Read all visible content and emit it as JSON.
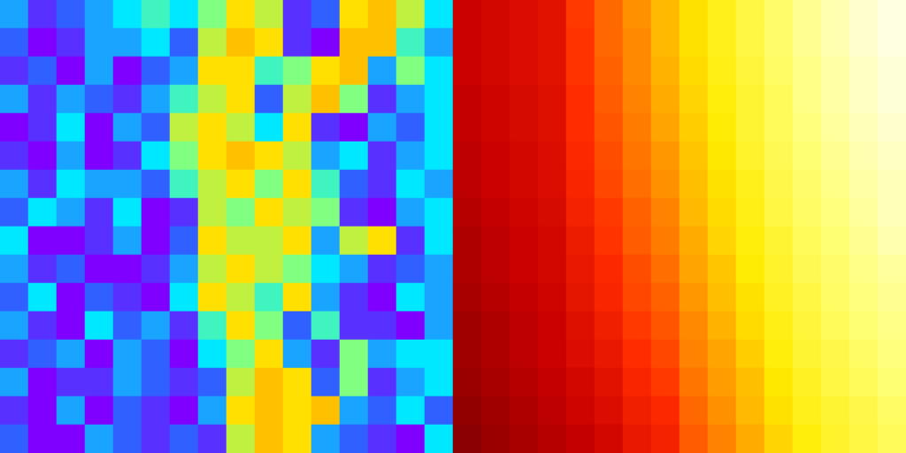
{
  "chart_data": [
    {
      "type": "heatmap",
      "tick_labels": false,
      "color_range": [
        0,
        1
      ],
      "cells": [
        [
          0.3,
          0.1,
          0.2,
          0.3,
          0.4,
          0.5,
          0.4,
          0.6,
          0.8,
          0.7,
          0.1,
          0.2,
          0.8,
          0.9,
          0.7,
          0.4
        ],
        [
          0.2,
          0.0,
          0.1,
          0.3,
          0.3,
          0.4,
          0.2,
          0.7,
          0.9,
          0.8,
          0.1,
          0.0,
          0.9,
          0.9,
          0.5,
          0.3
        ],
        [
          0.1,
          0.2,
          0.0,
          0.3,
          0.0,
          0.2,
          0.3,
          0.8,
          0.8,
          0.5,
          0.6,
          0.8,
          0.9,
          0.3,
          0.6,
          0.4
        ],
        [
          0.3,
          0.1,
          0.3,
          0.2,
          0.1,
          0.3,
          0.5,
          0.7,
          0.8,
          0.2,
          0.7,
          0.9,
          0.6,
          0.1,
          0.3,
          0.4
        ],
        [
          0.0,
          0.1,
          0.4,
          0.0,
          0.3,
          0.2,
          0.7,
          0.8,
          0.7,
          0.4,
          0.8,
          0.1,
          0.0,
          0.3,
          0.2,
          0.4
        ],
        [
          0.1,
          0.0,
          0.3,
          0.0,
          0.1,
          0.4,
          0.6,
          0.8,
          0.9,
          0.8,
          0.7,
          0.3,
          0.4,
          0.1,
          0.3,
          0.4
        ],
        [
          0.3,
          0.1,
          0.4,
          0.3,
          0.3,
          0.2,
          0.5,
          0.7,
          0.8,
          0.6,
          0.8,
          0.5,
          0.2,
          0.1,
          0.4,
          0.3
        ],
        [
          0.2,
          0.4,
          0.3,
          0.1,
          0.4,
          0.0,
          0.1,
          0.7,
          0.6,
          0.8,
          0.7,
          0.6,
          0.1,
          0.0,
          0.3,
          0.4
        ],
        [
          0.4,
          0.0,
          0.0,
          0.1,
          0.3,
          0.0,
          0.2,
          0.8,
          0.7,
          0.7,
          0.8,
          0.3,
          0.7,
          0.8,
          0.1,
          0.4
        ],
        [
          0.3,
          0.1,
          0.2,
          0.0,
          0.0,
          0.1,
          0.3,
          0.7,
          0.8,
          0.7,
          0.6,
          0.4,
          0.3,
          0.1,
          0.2,
          0.3
        ],
        [
          0.2,
          0.4,
          0.0,
          0.2,
          0.1,
          0.0,
          0.4,
          0.8,
          0.7,
          0.5,
          0.8,
          0.3,
          0.1,
          0.0,
          0.4,
          0.3
        ],
        [
          0.3,
          0.1,
          0.0,
          0.4,
          0.2,
          0.3,
          0.1,
          0.5,
          0.8,
          0.6,
          0.2,
          0.5,
          0.1,
          0.1,
          0.0,
          0.3
        ],
        [
          0.1,
          0.2,
          0.3,
          0.0,
          0.3,
          0.2,
          0.0,
          0.4,
          0.6,
          0.8,
          0.3,
          0.1,
          0.6,
          0.3,
          0.4,
          0.4
        ],
        [
          0.3,
          0.0,
          0.1,
          0.1,
          0.3,
          0.2,
          0.1,
          0.2,
          0.7,
          0.9,
          0.8,
          0.2,
          0.6,
          0.1,
          0.3,
          0.4
        ],
        [
          0.1,
          0.0,
          0.3,
          0.0,
          0.2,
          0.1,
          0.0,
          0.3,
          0.8,
          0.9,
          0.8,
          0.9,
          0.3,
          0.2,
          0.4,
          0.2
        ],
        [
          0.2,
          0.0,
          0.0,
          0.3,
          0.2,
          0.1,
          0.2,
          0.1,
          0.7,
          0.9,
          0.8,
          0.3,
          0.2,
          0.1,
          0.0,
          0.4
        ]
      ]
    },
    {
      "type": "heatmap",
      "tick_labels": false,
      "color_range": [
        0,
        1
      ],
      "cells": [
        [
          0.29,
          0.31,
          0.33,
          0.35,
          0.45,
          0.52,
          0.58,
          0.64,
          0.7,
          0.75,
          0.8,
          0.85,
          0.89,
          0.92,
          0.95,
          0.97
        ],
        [
          0.29,
          0.31,
          0.33,
          0.35,
          0.44,
          0.52,
          0.57,
          0.64,
          0.7,
          0.75,
          0.8,
          0.85,
          0.89,
          0.92,
          0.95,
          0.97
        ],
        [
          0.29,
          0.31,
          0.33,
          0.35,
          0.44,
          0.51,
          0.57,
          0.63,
          0.69,
          0.74,
          0.79,
          0.84,
          0.88,
          0.91,
          0.94,
          0.96
        ],
        [
          0.28,
          0.3,
          0.32,
          0.34,
          0.43,
          0.5,
          0.56,
          0.62,
          0.68,
          0.73,
          0.78,
          0.83,
          0.88,
          0.91,
          0.94,
          0.96
        ],
        [
          0.28,
          0.3,
          0.32,
          0.34,
          0.43,
          0.49,
          0.55,
          0.61,
          0.67,
          0.72,
          0.78,
          0.83,
          0.87,
          0.9,
          0.93,
          0.95
        ],
        [
          0.27,
          0.29,
          0.31,
          0.33,
          0.42,
          0.48,
          0.54,
          0.59,
          0.66,
          0.71,
          0.77,
          0.82,
          0.86,
          0.89,
          0.92,
          0.94
        ],
        [
          0.27,
          0.29,
          0.31,
          0.33,
          0.41,
          0.47,
          0.53,
          0.58,
          0.65,
          0.7,
          0.75,
          0.81,
          0.85,
          0.88,
          0.91,
          0.93
        ],
        [
          0.26,
          0.28,
          0.3,
          0.32,
          0.4,
          0.45,
          0.51,
          0.56,
          0.64,
          0.69,
          0.74,
          0.8,
          0.84,
          0.87,
          0.9,
          0.93
        ],
        [
          0.25,
          0.27,
          0.29,
          0.31,
          0.38,
          0.44,
          0.5,
          0.55,
          0.62,
          0.68,
          0.73,
          0.78,
          0.83,
          0.86,
          0.89,
          0.92
        ],
        [
          0.25,
          0.27,
          0.29,
          0.31,
          0.37,
          0.42,
          0.48,
          0.53,
          0.61,
          0.66,
          0.72,
          0.77,
          0.82,
          0.85,
          0.88,
          0.9
        ],
        [
          0.24,
          0.26,
          0.28,
          0.3,
          0.36,
          0.41,
          0.47,
          0.51,
          0.59,
          0.65,
          0.7,
          0.76,
          0.8,
          0.84,
          0.87,
          0.89
        ],
        [
          0.23,
          0.25,
          0.27,
          0.29,
          0.34,
          0.39,
          0.45,
          0.49,
          0.57,
          0.63,
          0.69,
          0.74,
          0.79,
          0.83,
          0.86,
          0.88
        ],
        [
          0.23,
          0.25,
          0.27,
          0.29,
          0.33,
          0.37,
          0.43,
          0.47,
          0.56,
          0.61,
          0.67,
          0.73,
          0.78,
          0.81,
          0.84,
          0.87
        ],
        [
          0.22,
          0.24,
          0.26,
          0.28,
          0.31,
          0.35,
          0.41,
          0.45,
          0.54,
          0.6,
          0.65,
          0.71,
          0.76,
          0.8,
          0.83,
          0.86
        ],
        [
          0.21,
          0.23,
          0.25,
          0.27,
          0.3,
          0.33,
          0.39,
          0.42,
          0.52,
          0.58,
          0.64,
          0.7,
          0.75,
          0.78,
          0.81,
          0.84
        ],
        [
          0.2,
          0.22,
          0.24,
          0.26,
          0.28,
          0.31,
          0.37,
          0.4,
          0.5,
          0.56,
          0.62,
          0.68,
          0.73,
          0.77,
          0.8,
          0.83
        ]
      ]
    }
  ]
}
